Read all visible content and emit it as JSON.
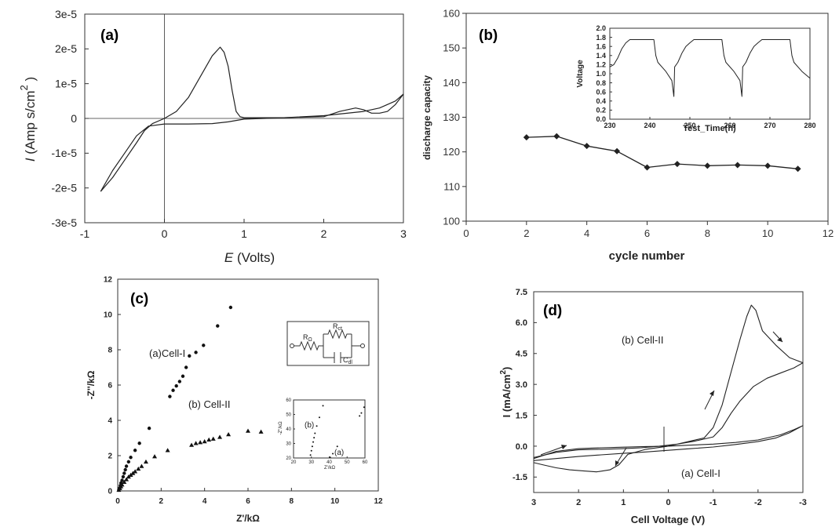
{
  "panels": {
    "a": {
      "label": "(a)",
      "ylabel_italic": "I",
      "ylabel_main": " (Amp s/cm",
      "ylabel_sup": "2",
      "ylabel_close": " )",
      "xlabel_italic": "E",
      "xlabel_main": " (Volts)"
    },
    "b": {
      "label": "(b)",
      "inset": {
        "ylabel": "Voltage",
        "xlabel": "Test_Time(h)"
      }
    },
    "c": {
      "label": "(c)",
      "series_label_1": "(a)Cell-I",
      "series_label_2": "(b) Cell-II",
      "circuit": {
        "r1": "R",
        "r1_sub": "Ω",
        "r2": "R",
        "r2_sub": "ct",
        "c": "C",
        "c_sub": "dl"
      },
      "inset": {
        "label_b": "(b)",
        "label_a": "(a)",
        "ylabel": "-Z''/kΩ",
        "xlabel": "Z'/kΩ"
      }
    },
    "d": {
      "label": "(d)",
      "series_label_1": "(b) Cell-II",
      "series_label_2": "(a) Cell-I",
      "ylabel_main": "I (mA/cm",
      "ylabel_sup": "2",
      "ylabel_close": ")"
    }
  },
  "chart_data": [
    {
      "id": "a",
      "type": "line",
      "title": "",
      "xlabel": "E (Volts)",
      "ylabel": "I (Amp s/cm2 )",
      "xlim": [
        -1,
        3
      ],
      "ylim": [
        -3e-05,
        3e-05
      ],
      "x_ticks": [
        -1,
        0,
        1,
        2,
        3
      ],
      "x_tick_labels": [
        "-1",
        "0",
        "1",
        "2",
        "3"
      ],
      "y_ticks": [
        -3e-05,
        -2e-05,
        -1e-05,
        0,
        1e-05,
        2e-05,
        3e-05
      ],
      "y_tick_labels": [
        "-3e-5",
        "-2e-5",
        "-1e-5",
        "0",
        "1e-5",
        "2e-5",
        "3e-5"
      ],
      "reference_lines": {
        "x": 0,
        "y": 0
      },
      "series": [
        {
          "x": [
            -0.8,
            -0.65,
            -0.5,
            -0.35,
            -0.25,
            -0.15,
            0.0,
            0.15,
            0.3,
            0.45,
            0.6,
            0.7,
            0.75,
            0.8,
            0.85,
            0.9,
            0.95,
            1.0,
            1.5,
            2.0,
            2.2,
            2.4,
            2.5,
            2.6,
            2.7,
            2.8,
            2.9,
            3.0
          ],
          "y": [
            -2.1e-05,
            -1.7e-05,
            -1.2e-05,
            -7e-06,
            -3.5e-06,
            -1.5e-06,
            0,
            2e-06,
            6e-06,
            1.2e-05,
            1.8e-05,
            2.05e-05,
            1.9e-05,
            1.5e-05,
            8e-06,
            2e-06,
            5e-07,
            2e-07,
            2e-07,
            5e-07,
            2e-06,
            3e-06,
            2.5e-06,
            1.5e-06,
            1.5e-06,
            2e-06,
            4e-06,
            7e-06
          ]
        },
        {
          "x": [
            3.0,
            2.9,
            2.7,
            2.5,
            2.0,
            1.5,
            1.0,
            0.8,
            0.6,
            0.3,
            0.0,
            -0.2,
            -0.35,
            -0.5,
            -0.65,
            -0.8
          ],
          "y": [
            7e-06,
            5e-06,
            3e-06,
            2e-06,
            8e-07,
            2e-07,
            -2e-07,
            -1e-06,
            -1.5e-06,
            -1.6e-06,
            -1.6e-06,
            -2.2e-06,
            -5e-06,
            -1e-05,
            -1.5e-05,
            -2.1e-05
          ]
        }
      ]
    },
    {
      "id": "b",
      "type": "line",
      "title": "",
      "xlabel": "cycle number",
      "ylabel": "discharge capacity",
      "xlim": [
        0,
        12
      ],
      "ylim": [
        100,
        160
      ],
      "x_ticks": [
        0,
        2,
        4,
        6,
        8,
        10,
        12
      ],
      "x_tick_labels": [
        "0",
        "2",
        "4",
        "6",
        "8",
        "10",
        "12"
      ],
      "y_ticks": [
        100,
        110,
        120,
        130,
        140,
        150,
        160
      ],
      "y_tick_labels": [
        "100",
        "110",
        "120",
        "130",
        "140",
        "150",
        "160"
      ],
      "series": [
        {
          "x": [
            2,
            3,
            4,
            5,
            6,
            7,
            8,
            9,
            10,
            11
          ],
          "y": [
            124.2,
            124.5,
            121.7,
            120.2,
            115.5,
            116.5,
            116.0,
            116.2,
            116.0,
            115.1
          ]
        }
      ],
      "inset": {
        "type": "line",
        "xlabel": "Test_Time(h)",
        "ylabel": "Voltage",
        "xlim": [
          230,
          280
        ],
        "ylim": [
          0.0,
          2.0
        ],
        "x_ticks": [
          230,
          240,
          250,
          260,
          270,
          280
        ],
        "x_tick_labels": [
          "230",
          "240",
          "250",
          "260",
          "270",
          "280"
        ],
        "y_ticks": [
          0.0,
          0.2,
          0.4,
          0.6,
          0.8,
          1.0,
          1.2,
          1.4,
          1.6,
          1.8,
          2.0
        ],
        "y_tick_labels": [
          "0.0",
          "0.2",
          "0.4",
          "0.6",
          "0.8",
          "1.0",
          "1.2",
          "1.4",
          "1.6",
          "1.8",
          "2.0"
        ],
        "series": [
          {
            "x": [
              230,
              231,
              232,
              233,
              234,
              235,
              241,
              241.5,
              242,
              244,
              245.5,
              246,
              246.2,
              247,
              248,
              249,
              250,
              251,
              252,
              258,
              258.5,
              259,
              261,
              262.5,
              263,
              263.2,
              264,
              265,
              266,
              267,
              268,
              269,
              275,
              275.5,
              276,
              278,
              280
            ],
            "y": [
              1.15,
              1.2,
              1.35,
              1.55,
              1.68,
              1.75,
              1.75,
              1.4,
              1.25,
              1.05,
              0.85,
              0.5,
              1.15,
              1.25,
              1.45,
              1.6,
              1.68,
              1.75,
              1.75,
              1.75,
              1.4,
              1.25,
              1.05,
              0.85,
              0.5,
              1.15,
              1.25,
              1.45,
              1.6,
              1.68,
              1.75,
              1.75,
              1.75,
              1.4,
              1.25,
              1.05,
              0.9
            ]
          }
        ]
      }
    },
    {
      "id": "c",
      "type": "scatter",
      "title": "",
      "xlabel": "Z'/kΩ",
      "ylabel": "-Z''/kΩ",
      "xlim": [
        0,
        12
      ],
      "ylim": [
        0,
        12
      ],
      "x_ticks": [
        0,
        2,
        4,
        6,
        8,
        10,
        12
      ],
      "x_tick_labels": [
        "0",
        "2",
        "4",
        "6",
        "8",
        "10",
        "12"
      ],
      "y_ticks": [
        0,
        2,
        4,
        6,
        8,
        10,
        12
      ],
      "y_tick_labels": [
        "0",
        "2",
        "4",
        "6",
        "8",
        "10",
        "12"
      ],
      "series": [
        {
          "name": "(a)Cell-I",
          "marker": "circle",
          "x": [
            0.05,
            0.08,
            0.12,
            0.15,
            0.2,
            0.25,
            0.3,
            0.35,
            0.4,
            0.5,
            0.6,
            0.8,
            1.0,
            1.45,
            2.4,
            2.55,
            2.7,
            2.85,
            3.0,
            3.15,
            3.3,
            3.6,
            3.95,
            4.6,
            5.2
          ],
          "y": [
            0.05,
            0.15,
            0.3,
            0.45,
            0.6,
            0.8,
            1.0,
            1.2,
            1.4,
            1.65,
            1.9,
            2.3,
            2.7,
            3.55,
            5.35,
            5.7,
            5.95,
            6.2,
            6.5,
            7.0,
            7.65,
            7.85,
            8.25,
            9.35,
            10.4
          ]
        },
        {
          "name": "(b) Cell-II",
          "marker": "triangle",
          "x": [
            0.05,
            0.1,
            0.15,
            0.2,
            0.3,
            0.4,
            0.5,
            0.6,
            0.7,
            0.8,
            0.95,
            1.1,
            1.3,
            1.7,
            2.3,
            3.4,
            3.6,
            3.8,
            4.0,
            4.2,
            4.4,
            4.7,
            5.1,
            6.0,
            6.6
          ],
          "y": [
            0.05,
            0.15,
            0.25,
            0.35,
            0.5,
            0.65,
            0.8,
            0.9,
            1.0,
            1.1,
            1.25,
            1.4,
            1.65,
            1.95,
            2.3,
            2.6,
            2.7,
            2.75,
            2.8,
            2.9,
            2.95,
            3.05,
            3.2,
            3.4,
            3.35
          ]
        }
      ],
      "inset": {
        "type": "scatter",
        "xlabel": "Z'/kΩ",
        "ylabel": "-Z''/kΩ",
        "xlim": [
          20,
          60
        ],
        "ylim": [
          20,
          60
        ],
        "x_ticks": [
          20,
          30,
          40,
          50,
          60
        ],
        "x_tick_labels": [
          "20",
          "30",
          "40",
          "50",
          "60"
        ],
        "y_ticks": [
          20,
          30,
          40,
          50,
          60
        ],
        "y_tick_labels": [
          "20",
          "30",
          "40",
          "50",
          "60"
        ],
        "series": [
          {
            "name": "(b)",
            "x": [
              29.5,
              30.0,
              30.5,
              31.0,
              31.5,
              32.0,
              33.0,
              34.5,
              36.5
            ],
            "y": [
              22,
              25,
              28,
              31,
              34,
              37,
              42,
              48,
              56
            ]
          },
          {
            "name": "(a)",
            "x": [
              40.5,
              42.0,
              44.5,
              57.0,
              58.0,
              59.5
            ],
            "y": [
              20.5,
              23,
              28,
              49,
              51,
              55
            ]
          }
        ]
      }
    },
    {
      "id": "d",
      "type": "line",
      "title": "",
      "xlabel": "Cell Voltage (V)",
      "ylabel": "I (mA/cm2)",
      "xlim": [
        3,
        -3
      ],
      "ylim": [
        -2.25,
        7.5
      ],
      "x_ticks": [
        3,
        2,
        1,
        0,
        -1,
        -2,
        -3
      ],
      "x_tick_labels": [
        "3",
        "2",
        "1",
        "0",
        "-1",
        "-2",
        "-3"
      ],
      "y_ticks": [
        -1.5,
        0.0,
        1.5,
        3.0,
        4.5,
        6.0,
        7.5
      ],
      "y_tick_labels": [
        "-1.5",
        "0.0",
        "1.5",
        "3.0",
        "4.5",
        "6.0",
        "7.5"
      ],
      "series": [
        {
          "name": "(b) Cell-II",
          "x": [
            3.0,
            2.8,
            2.5,
            2.2,
            1.9,
            1.6,
            1.3,
            1.1,
            0.9,
            0.5,
            0.0,
            -0.4,
            -0.8,
            -1.0,
            -1.2,
            -1.4,
            -1.6,
            -1.75,
            -1.85,
            -1.95,
            -2.1,
            -2.4,
            -2.7,
            -3.0,
            -2.8,
            -2.5,
            -2.2,
            -1.9,
            -1.6,
            -1.4,
            -1.2,
            -1.0,
            -0.6,
            -0.2,
            0.2,
            0.6,
            1.0,
            1.5,
            2.0,
            2.5,
            3.0
          ],
          "y": [
            -0.8,
            -0.9,
            -1.05,
            -1.15,
            -1.2,
            -1.25,
            -1.15,
            -0.9,
            -0.4,
            -0.15,
            0.0,
            0.2,
            0.4,
            0.9,
            2.0,
            3.6,
            5.2,
            6.3,
            6.85,
            6.6,
            5.6,
            4.9,
            4.3,
            4.05,
            3.8,
            3.55,
            3.3,
            2.9,
            2.2,
            1.6,
            0.9,
            0.45,
            0.25,
            0.1,
            0.0,
            -0.08,
            -0.12,
            -0.15,
            -0.18,
            -0.3,
            -0.55
          ]
        },
        {
          "name": "(a) Cell-I",
          "x": [
            3.0,
            2.5,
            2.0,
            1.5,
            1.0,
            0.5,
            0.0,
            -0.5,
            -1.0,
            -1.5,
            -2.0,
            -2.5,
            -2.8,
            -3.0,
            -2.7,
            -2.4,
            -2.0,
            -1.5,
            -1.0,
            -0.5,
            0.0,
            0.5,
            1.0,
            1.5,
            2.0,
            2.5,
            3.0
          ],
          "y": [
            -0.6,
            -0.25,
            -0.12,
            -0.08,
            -0.05,
            -0.02,
            0.0,
            0.05,
            0.1,
            0.18,
            0.3,
            0.55,
            0.8,
            1.0,
            0.65,
            0.4,
            0.22,
            0.08,
            -0.04,
            -0.12,
            -0.2,
            -0.28,
            -0.35,
            -0.42,
            -0.5,
            -0.6,
            -0.7
          ]
        }
      ]
    }
  ]
}
